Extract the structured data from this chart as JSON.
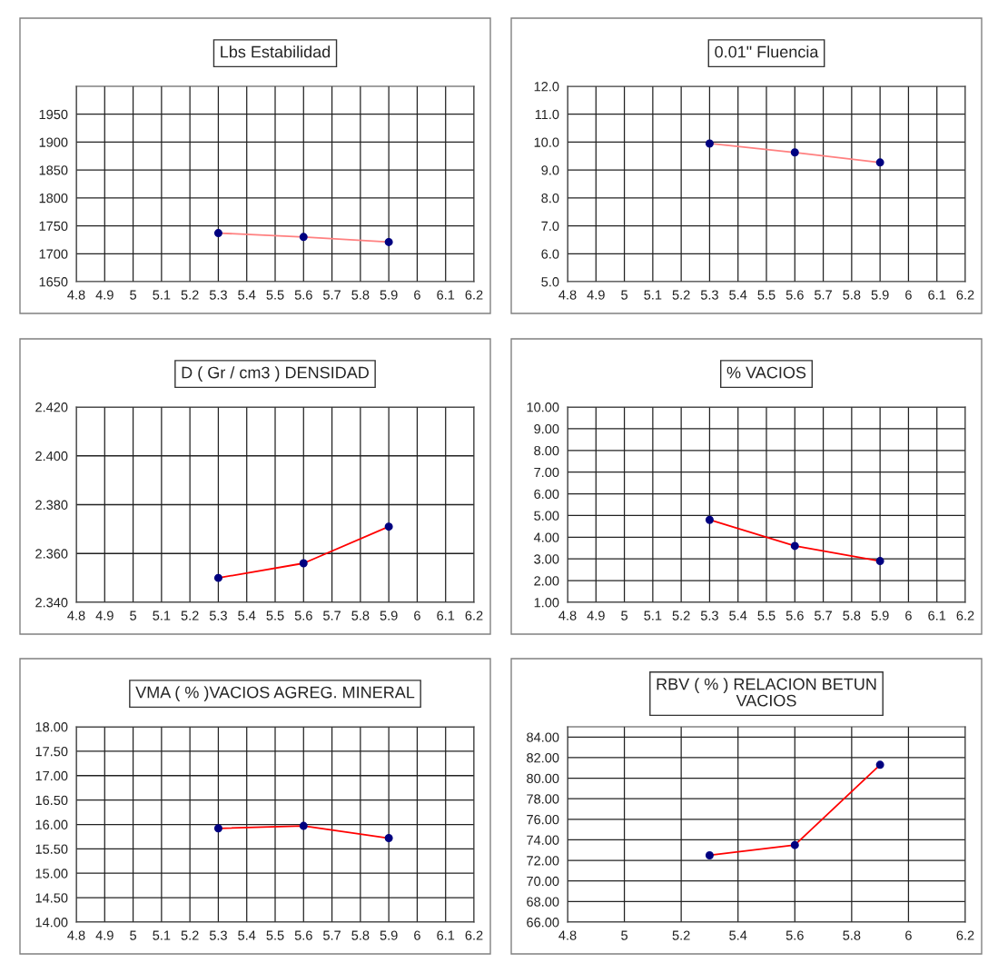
{
  "chart_data": [
    {
      "type": "line",
      "title": "Lbs Estabilidad",
      "x": [
        5.3,
        5.6,
        5.9
      ],
      "series": [
        {
          "color": "#ff8080",
          "values": [
            1737,
            1730,
            1721
          ]
        }
      ],
      "xlim": [
        4.8,
        6.2
      ],
      "xticks": [
        4.8,
        4.9,
        5,
        5.1,
        5.2,
        5.3,
        5.4,
        5.5,
        5.6,
        5.7,
        5.8,
        5.9,
        6,
        6.1,
        6.2
      ],
      "ylim": [
        1650,
        2000
      ],
      "yticks": [
        1650,
        1700,
        1750,
        1800,
        1850,
        1900,
        1950
      ],
      "grid": true,
      "marker": "circle",
      "line_style": "solid"
    },
    {
      "type": "line",
      "title": "0.01\" Fluencia",
      "x": [
        5.3,
        5.6,
        5.9
      ],
      "series": [
        {
          "color": "#ff8080",
          "values": [
            9.95,
            9.63,
            9.27
          ]
        }
      ],
      "xlim": [
        4.8,
        6.2
      ],
      "xticks": [
        4.8,
        4.9,
        5,
        5.1,
        5.2,
        5.3,
        5.4,
        5.5,
        5.6,
        5.7,
        5.8,
        5.9,
        6,
        6.1,
        6.2
      ],
      "ylim": [
        5,
        12
      ],
      "yticks": [
        {
          "value": 5,
          "label": "5.0"
        },
        {
          "value": 6,
          "label": "6.0"
        },
        {
          "value": 7,
          "label": "7.0"
        },
        {
          "value": 8,
          "label": "8.0"
        },
        {
          "value": 9,
          "label": "9.0"
        },
        {
          "value": 10,
          "label": "10.0"
        },
        {
          "value": 11,
          "label": "11.0"
        },
        {
          "value": 12,
          "label": "12.0"
        }
      ],
      "grid": true,
      "marker": "circle",
      "line_style": "solid"
    },
    {
      "type": "line",
      "title": "D ( Gr / cm3 ) DENSIDAD",
      "x": [
        5.3,
        5.6,
        5.9
      ],
      "series": [
        {
          "color": "#ff0000",
          "values": [
            2.35,
            2.356,
            2.371
          ]
        }
      ],
      "xlim": [
        4.8,
        6.2
      ],
      "xticks": [
        4.8,
        4.9,
        5,
        5.1,
        5.2,
        5.3,
        5.4,
        5.5,
        5.6,
        5.7,
        5.8,
        5.9,
        6,
        6.1,
        6.2
      ],
      "ylim": [
        2.34,
        2.42
      ],
      "yticks": [
        {
          "value": 2.34,
          "label": "2.340"
        },
        {
          "value": 2.36,
          "label": "2.360"
        },
        {
          "value": 2.38,
          "label": "2.380"
        },
        {
          "value": 2.4,
          "label": "2.400"
        },
        {
          "value": 2.42,
          "label": "2.420"
        }
      ],
      "grid": true,
      "marker": "circle",
      "line_style": "solid"
    },
    {
      "type": "line",
      "title": "% VACIOS",
      "x": [
        5.3,
        5.6,
        5.9
      ],
      "series": [
        {
          "color": "#ff0000",
          "values": [
            4.8,
            3.6,
            2.9
          ]
        }
      ],
      "xlim": [
        4.8,
        6.2
      ],
      "xticks": [
        4.8,
        4.9,
        5,
        5.1,
        5.2,
        5.3,
        5.4,
        5.5,
        5.6,
        5.7,
        5.8,
        5.9,
        6,
        6.1,
        6.2
      ],
      "ylim": [
        1,
        10
      ],
      "yticks": [
        {
          "value": 1,
          "label": "1.00"
        },
        {
          "value": 2,
          "label": "2.00"
        },
        {
          "value": 3,
          "label": "3.00"
        },
        {
          "value": 4,
          "label": "4.00"
        },
        {
          "value": 5,
          "label": "5.00"
        },
        {
          "value": 6,
          "label": "6.00"
        },
        {
          "value": 7,
          "label": "7.00"
        },
        {
          "value": 8,
          "label": "8.00"
        },
        {
          "value": 9,
          "label": "9.00"
        },
        {
          "value": 10,
          "label": "10.00"
        }
      ],
      "grid": true,
      "marker": "circle",
      "line_style": "solid"
    },
    {
      "type": "line",
      "title": "VMA ( % )VACIOS AGREG. MINERAL",
      "x": [
        5.3,
        5.6,
        5.9
      ],
      "series": [
        {
          "color": "#ff0000",
          "values": [
            15.92,
            15.97,
            15.72
          ]
        }
      ],
      "xlim": [
        4.8,
        6.2
      ],
      "xticks": [
        4.8,
        4.9,
        5,
        5.1,
        5.2,
        5.3,
        5.4,
        5.5,
        5.6,
        5.7,
        5.8,
        5.9,
        6,
        6.1,
        6.2
      ],
      "ylim": [
        14,
        18
      ],
      "yticks": [
        {
          "value": 14,
          "label": "14.00"
        },
        {
          "value": 14.5,
          "label": "14.50"
        },
        {
          "value": 15,
          "label": "15.00"
        },
        {
          "value": 15.5,
          "label": "15.50"
        },
        {
          "value": 16,
          "label": "16.00"
        },
        {
          "value": 16.5,
          "label": "16.50"
        },
        {
          "value": 17,
          "label": "17.00"
        },
        {
          "value": 17.5,
          "label": "17.50"
        },
        {
          "value": 18,
          "label": "18.00"
        }
      ],
      "grid": true,
      "marker": "circle",
      "line_style": "solid"
    },
    {
      "type": "line",
      "title": "RBV ( % ) RELACION BETUN\nVACIOS",
      "x": [
        5.3,
        5.6,
        5.9
      ],
      "series": [
        {
          "color": "#ff0000",
          "values": [
            72.5,
            73.5,
            81.3
          ]
        }
      ],
      "xlim": [
        4.8,
        6.2
      ],
      "xticks": [
        4.8,
        5,
        5.2,
        5.4,
        5.6,
        5.8,
        6,
        6.2
      ],
      "ylim": [
        66,
        85
      ],
      "yticks": [
        {
          "value": 66,
          "label": "66.00"
        },
        {
          "value": 68,
          "label": "68.00"
        },
        {
          "value": 70,
          "label": "70.00"
        },
        {
          "value": 72,
          "label": "72.00"
        },
        {
          "value": 74,
          "label": "74.00"
        },
        {
          "value": 76,
          "label": "76.00"
        },
        {
          "value": 78,
          "label": "78.00"
        },
        {
          "value": 80,
          "label": "80.00"
        },
        {
          "value": 82,
          "label": "82.00"
        },
        {
          "value": 84,
          "label": "84.00"
        }
      ],
      "grid": true,
      "marker": "circle",
      "line_style": "solid"
    }
  ]
}
